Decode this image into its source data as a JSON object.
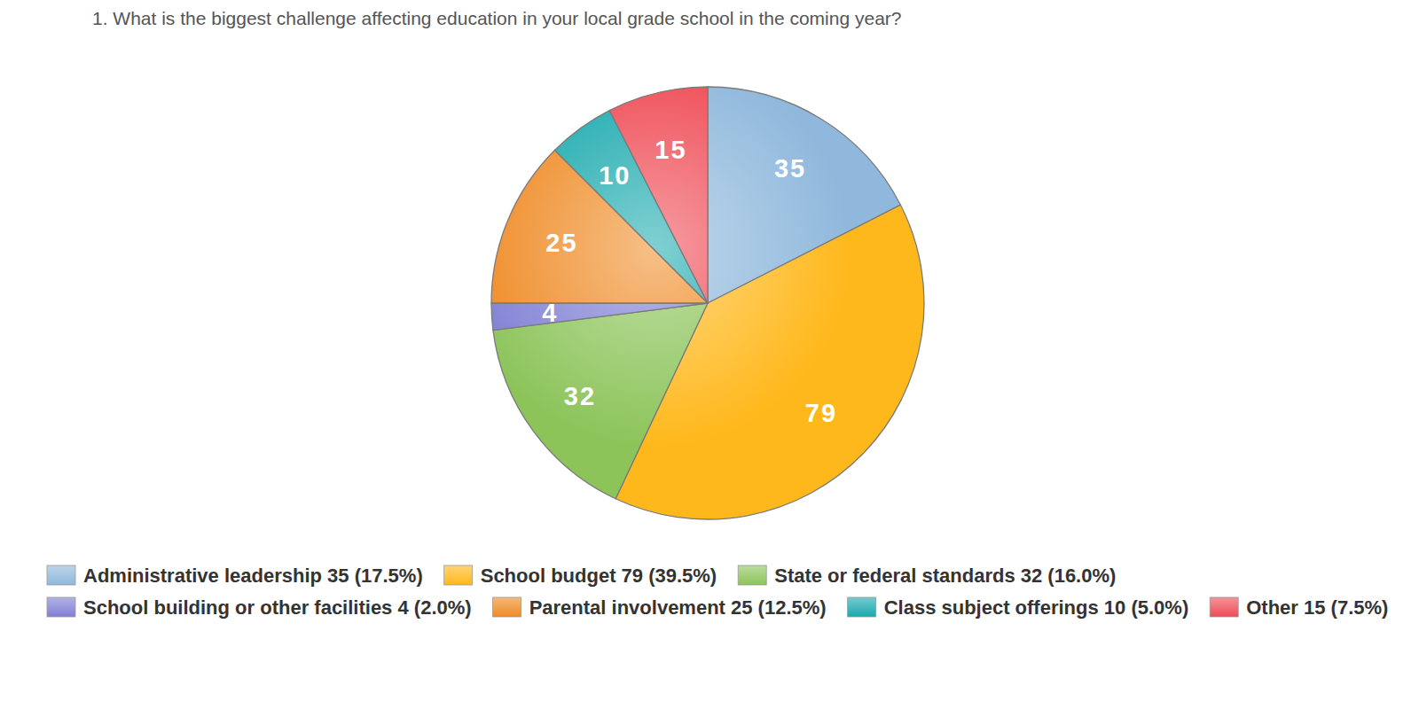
{
  "chart_data": {
    "type": "pie",
    "title": "1. What is the biggest challenge affecting education in your local grade school in the coming year?",
    "categories": [
      "Administrative leadership 35 (17.5%)",
      "School budget 79 (39.5%)",
      "State or federal standards 32 (16.0%)",
      "School building or other facilities 4 (2.0%)",
      "Parental involvement 25 (12.5%)",
      "Class subject offerings 10 (5.0%)",
      "Other 15 (7.5%)"
    ],
    "values": [
      35,
      79,
      32,
      4,
      25,
      10,
      15
    ],
    "colors": [
      "#8fb8dc",
      "#ffb81c",
      "#8cc45a",
      "#7f7fd5",
      "#ef8a24",
      "#1aa9ad",
      "#ef4b55"
    ],
    "data_labels": true,
    "legend": "bottom"
  }
}
